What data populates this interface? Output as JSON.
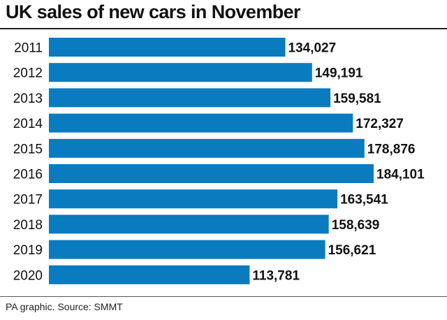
{
  "title": "UK sales of new cars in November",
  "source": "PA graphic. Source: SMMT",
  "colors": {
    "bar": "#0a7bbe",
    "text": "#111111"
  },
  "chart_data": {
    "type": "bar",
    "orientation": "horizontal",
    "categories": [
      "2011",
      "2012",
      "2013",
      "2014",
      "2015",
      "2016",
      "2017",
      "2018",
      "2019",
      "2020"
    ],
    "values": [
      134027,
      149191,
      159581,
      172327,
      178876,
      184101,
      163541,
      158639,
      156621,
      113781
    ],
    "value_labels": [
      "134,027",
      "149,191",
      "159,581",
      "172,327",
      "178,876",
      "184,101",
      "163,541",
      "158,639",
      "156,621",
      "113,781"
    ],
    "title": "UK sales of new cars in November",
    "xlabel": "",
    "ylabel": "",
    "xlim": [
      0,
      184101
    ],
    "grid": false,
    "legend": "none"
  }
}
